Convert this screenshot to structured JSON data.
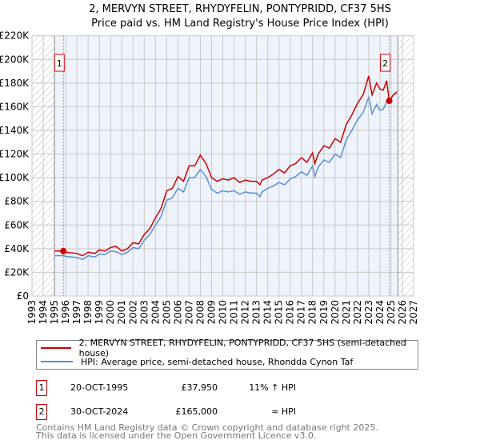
{
  "chart_data": {
    "type": "line",
    "title": "2, MERVYN STREET, RHYDYFELIN, PONTYPRIDD, CF37 5HS",
    "subtitle": "Price paid vs. HM Land Registry's House Price Index (HPI)",
    "xlim": [
      1993,
      2027
    ],
    "ylim": [
      0,
      220000
    ],
    "xticks": [
      "1993",
      "1994",
      "1995",
      "1996",
      "1997",
      "1998",
      "1999",
      "2000",
      "2001",
      "2002",
      "2003",
      "2004",
      "2005",
      "2006",
      "2007",
      "2008",
      "2009",
      "2010",
      "2011",
      "2012",
      "2013",
      "2014",
      "2015",
      "2016",
      "2017",
      "2018",
      "2019",
      "2020",
      "2021",
      "2022",
      "2023",
      "2024",
      "2025",
      "2026",
      "2027"
    ],
    "yticks": [
      {
        "v": 0,
        "label": "£0"
      },
      {
        "v": 20000,
        "label": "£20K"
      },
      {
        "v": 40000,
        "label": "£40K"
      },
      {
        "v": 60000,
        "label": "£60K"
      },
      {
        "v": 80000,
        "label": "£80K"
      },
      {
        "v": 100000,
        "label": "£100K"
      },
      {
        "v": 120000,
        "label": "£120K"
      },
      {
        "v": 140000,
        "label": "£140K"
      },
      {
        "v": 160000,
        "label": "£160K"
      },
      {
        "v": 180000,
        "label": "£180K"
      },
      {
        "v": 200000,
        "label": "£200K"
      },
      {
        "v": 220000,
        "label": "£220K"
      }
    ],
    "data_range": [
      1995.0,
      2025.6
    ],
    "series": [
      {
        "name": "2, MERVYN STREET, RHYDYFELIN, PONTYPRIDD, CF37 5HS (semi-detached house)",
        "color": "#cc0000",
        "x": [
          1995.0,
          1995.8,
          1996,
          1997,
          1997.5,
          1998,
          1998.6,
          1999,
          1999.5,
          2000,
          2000.5,
          2001,
          2001.5,
          2002,
          2002.5,
          2003,
          2003.5,
          2004,
          2004.5,
          2005,
          2005.5,
          2006,
          2006.5,
          2007,
          2007.5,
          2008,
          2008.5,
          2009,
          2009.5,
          2010,
          2010.5,
          2011,
          2011.5,
          2012,
          2012.5,
          2013,
          2013.3,
          2013.5,
          2014,
          2014.5,
          2015,
          2015.5,
          2016,
          2016.5,
          2017,
          2017.5,
          2018,
          2018.2,
          2018.5,
          2019,
          2019.5,
          2020,
          2020.5,
          2021,
          2021.5,
          2022,
          2022.5,
          2023,
          2023.3,
          2023.7,
          2024,
          2024.3,
          2024.6,
          2024.83,
          2025.2,
          2025.5
        ],
        "y": [
          38000,
          37950,
          37000,
          36000,
          34000,
          37000,
          36000,
          39000,
          38000,
          41000,
          42000,
          38000,
          40000,
          45000,
          44000,
          52000,
          57000,
          66000,
          74000,
          89000,
          91000,
          101000,
          97000,
          110000,
          110000,
          119000,
          112000,
          100000,
          97000,
          99000,
          98000,
          100000,
          96000,
          98000,
          97000,
          97000,
          94000,
          98000,
          100000,
          103000,
          107000,
          104000,
          110000,
          112000,
          117000,
          113000,
          121000,
          112000,
          120000,
          127000,
          125000,
          133000,
          130000,
          145000,
          153000,
          163000,
          170000,
          186000,
          170000,
          180000,
          175000,
          174000,
          182000,
          165000,
          170000,
          172000
        ]
      },
      {
        "name": "HPI: Average price, semi-detached house, Rhondda Cynon Taf",
        "color": "#5b8fd4",
        "x": [
          1995.0,
          1995.8,
          1996,
          1997,
          1997.5,
          1998,
          1998.6,
          1999,
          1999.5,
          2000,
          2000.5,
          2001,
          2001.5,
          2002,
          2002.5,
          2003,
          2003.5,
          2004,
          2004.5,
          2005,
          2005.5,
          2006,
          2006.5,
          2007,
          2007.5,
          2008,
          2008.5,
          2009,
          2009.5,
          2010,
          2010.5,
          2011,
          2011.5,
          2012,
          2012.5,
          2013,
          2013.3,
          2013.5,
          2014,
          2014.5,
          2015,
          2015.5,
          2016,
          2016.5,
          2017,
          2017.5,
          2018,
          2018.2,
          2018.5,
          2019,
          2019.5,
          2020,
          2020.5,
          2021,
          2021.5,
          2022,
          2022.5,
          2023,
          2023.3,
          2023.7,
          2024,
          2024.3,
          2024.6,
          2024.83,
          2025.2,
          2025.5
        ],
        "y": [
          34000,
          34200,
          33500,
          32500,
          31000,
          34000,
          33000,
          35500,
          35000,
          38000,
          37500,
          35000,
          37000,
          41000,
          40000,
          47000,
          52000,
          60000,
          67000,
          81000,
          83000,
          91000,
          88000,
          100000,
          100000,
          107000,
          101000,
          90000,
          87000,
          89000,
          88000,
          89000,
          86000,
          88000,
          87000,
          87000,
          84000,
          88000,
          91000,
          93000,
          96000,
          94000,
          99000,
          101000,
          105000,
          102000,
          110000,
          101000,
          109000,
          115000,
          113000,
          120000,
          117000,
          132000,
          140000,
          149000,
          155000,
          168000,
          154000,
          162000,
          157000,
          158000,
          164000,
          165000,
          170000,
          173000
        ]
      }
    ],
    "annotations": [
      {
        "label": "1",
        "x": 1995.8,
        "y": 37950
      },
      {
        "label": "2",
        "x": 2024.83,
        "y": 165000
      }
    ]
  },
  "legend": {
    "property": "2, MERVYN STREET, RHYDYFELIN, PONTYPRIDD, CF37 5HS (semi-detached house)",
    "hpi": "HPI: Average price, semi-detached house, Rhondda Cynon Taf"
  },
  "transactions": [
    {
      "num": "1",
      "date": "20-OCT-1995",
      "price": "£37,950",
      "hpi": "11% ↑ HPI"
    },
    {
      "num": "2",
      "date": "30-OCT-2024",
      "price": "£165,000",
      "hpi": "≈ HPI"
    }
  ],
  "footer": {
    "line1": "Contains HM Land Registry data © Crown copyright and database right 2025.",
    "line2": "This data is licensed under the Open Government Licence v3.0."
  }
}
